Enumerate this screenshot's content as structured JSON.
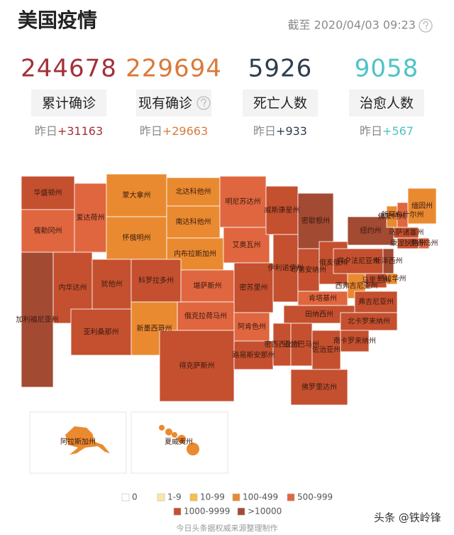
{
  "header": {
    "title": "美国疫情",
    "timestamp": "截至 2020/04/03 09:23"
  },
  "stats": [
    {
      "value": 244678,
      "label": "累计确诊",
      "yesterday_label": "昨日",
      "delta": "+31163",
      "color": "#a3303a"
    },
    {
      "value": 229694,
      "label": "现有确诊",
      "yesterday_label": "昨日",
      "delta": "+29663",
      "color": "#d9793a"
    },
    {
      "value": 5926,
      "label": "死亡人数",
      "yesterday_label": "昨日",
      "delta": "+933",
      "color": "#2c3d50"
    },
    {
      "value": 9058,
      "label": "治愈人数",
      "yesterday_label": "昨日",
      "delta": "+567",
      "color": "#4ec3c6"
    }
  ],
  "map": {
    "states": [
      {
        "name": "华盛顿州",
        "color": "#c4502f"
      },
      {
        "name": "俄勒冈州",
        "color": "#e0663f"
      },
      {
        "name": "爱达荷州",
        "color": "#e0663f"
      },
      {
        "name": "蒙大拿州",
        "color": "#ea8a30"
      },
      {
        "name": "怀俄明州",
        "color": "#ea8a30"
      },
      {
        "name": "北达科他州",
        "color": "#ea8a30"
      },
      {
        "name": "南达科他州",
        "color": "#ea8a30"
      },
      {
        "name": "内布拉斯加州",
        "color": "#ea8a30"
      },
      {
        "name": "明尼苏达州",
        "color": "#e0663f"
      },
      {
        "name": "艾奥瓦州",
        "color": "#e0663f"
      },
      {
        "name": "威斯康星州",
        "color": "#c4502f"
      },
      {
        "name": "密歇根州",
        "color": "#a34a33"
      },
      {
        "name": "加利福尼亚州",
        "color": "#a34a33"
      },
      {
        "name": "内华达州",
        "color": "#c4502f"
      },
      {
        "name": "犹他州",
        "color": "#c4502f"
      },
      {
        "name": "科罗拉多州",
        "color": "#c4502f"
      },
      {
        "name": "堪萨斯州",
        "color": "#e0663f"
      },
      {
        "name": "密苏里州",
        "color": "#c4502f"
      },
      {
        "name": "伊利诺伊州",
        "color": "#c4502f"
      },
      {
        "name": "印第安纳州",
        "color": "#c4502f"
      },
      {
        "name": "俄亥俄州",
        "color": "#c4502f"
      },
      {
        "name": "亚利桑那州",
        "color": "#c4502f"
      },
      {
        "name": "新墨西哥州",
        "color": "#ea8a30"
      },
      {
        "name": "俄克拉荷马州",
        "color": "#e0663f"
      },
      {
        "name": "阿肯色州",
        "color": "#e0663f"
      },
      {
        "name": "肯塔基州",
        "color": "#e0663f"
      },
      {
        "name": "田纳西州",
        "color": "#c4502f"
      },
      {
        "name": "西弗吉尼亚州",
        "color": "#ea8a30"
      },
      {
        "name": "弗吉尼亚州",
        "color": "#c4502f"
      },
      {
        "name": "北卡罗来纳州",
        "color": "#c4502f"
      },
      {
        "name": "得克萨斯州",
        "color": "#c4502f"
      },
      {
        "name": "路易斯安那州",
        "color": "#c4502f"
      },
      {
        "name": "密西西比州",
        "color": "#c4502f"
      },
      {
        "name": "亚拉巴马州",
        "color": "#c4502f"
      },
      {
        "name": "佐治亚州",
        "color": "#c4502f"
      },
      {
        "name": "南卡罗来纳州",
        "color": "#c4502f"
      },
      {
        "name": "佛罗里达州",
        "color": "#c4502f"
      },
      {
        "name": "宾夕法尼亚州",
        "color": "#c4502f"
      },
      {
        "name": "纽约州",
        "color": "#a34a33"
      },
      {
        "name": "佛蒙特州",
        "color": "#ea8a30"
      },
      {
        "name": "新罕布什尔州",
        "color": "#e0663f"
      },
      {
        "name": "缅因州",
        "color": "#ea8a30"
      },
      {
        "name": "马萨诸塞州",
        "color": "#c4502f"
      },
      {
        "name": "罗得岛州",
        "color": "#e0663f"
      },
      {
        "name": "康涅狄格州",
        "color": "#c4502f"
      },
      {
        "name": "新泽西州",
        "color": "#a34a33"
      },
      {
        "name": "特拉华州",
        "color": "#ea8a30"
      },
      {
        "name": "马里兰州",
        "color": "#c4502f"
      }
    ],
    "insets": [
      {
        "name": "阿拉斯加州",
        "color": "#ea8a30"
      },
      {
        "name": "夏威夷州",
        "color": "#ea8a30"
      }
    ]
  },
  "legend": [
    {
      "label": "0",
      "color": "#ffffff"
    },
    {
      "label": "1-9",
      "color": "#fbe7a6"
    },
    {
      "label": "10-99",
      "color": "#f6c146"
    },
    {
      "label": "100-499",
      "color": "#ea8a30"
    },
    {
      "label": "500-999",
      "color": "#e0663f"
    },
    {
      "label": "1000-9999",
      "color": "#c4502f"
    },
    {
      "label": ">10000",
      "color": "#a34a33"
    }
  ],
  "footer": {
    "source": "今日头条据权威来源整理制作",
    "watermark": "头条 @铁岭锋"
  }
}
